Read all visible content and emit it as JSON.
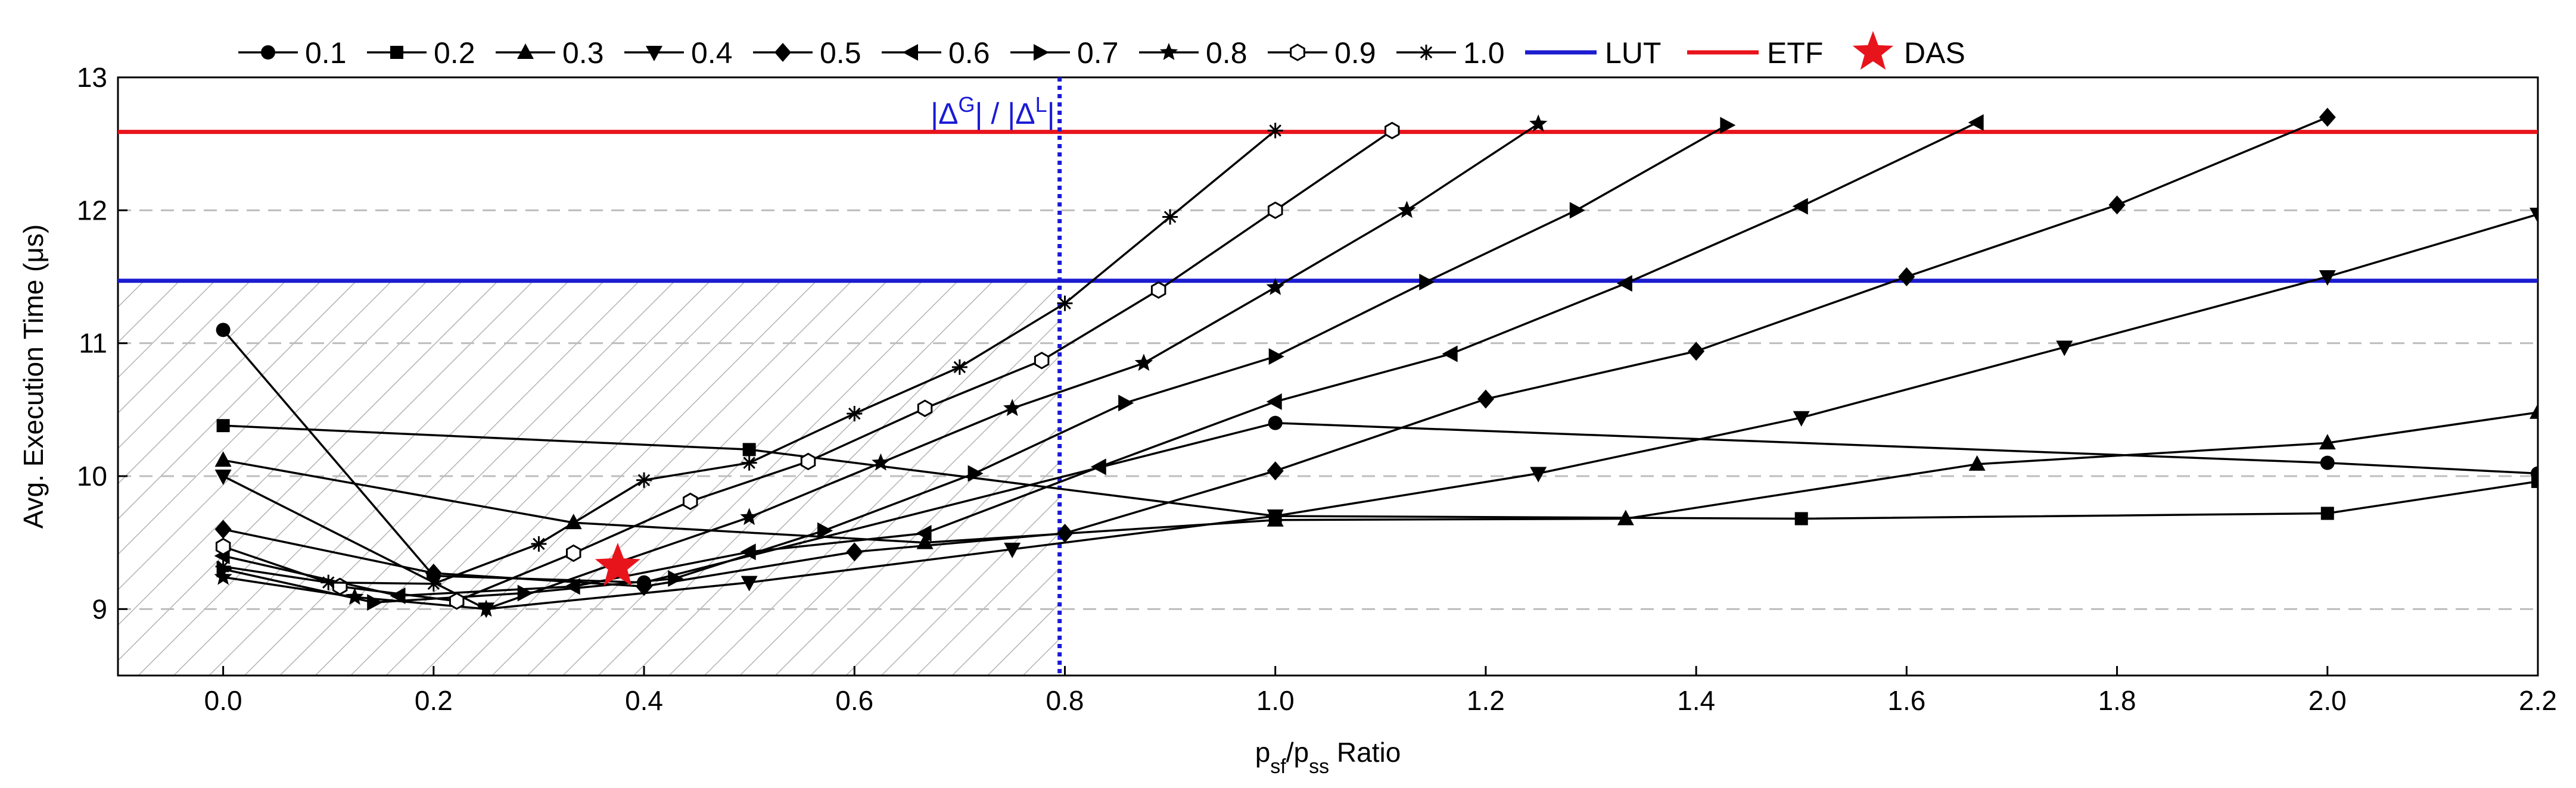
{
  "chart_data": {
    "type": "line",
    "xlabel": "p_sf/p_ss Ratio",
    "xlabel_parts": {
      "p1": "p",
      "s1": "sf",
      "sep": "/p",
      "s2": "ss",
      "rest": " Ratio"
    },
    "ylabel": "Avg. Execution Time (μs)",
    "xlim": [
      -0.1,
      2.2
    ],
    "ylim": [
      8.5,
      13
    ],
    "xticks": [
      "0.0",
      "0.2",
      "0.4",
      "0.6",
      "0.8",
      "1.0",
      "1.2",
      "1.4",
      "1.6",
      "1.8",
      "2.0",
      "2.2"
    ],
    "yticks": [
      "9",
      "10",
      "11",
      "12",
      "13"
    ],
    "grid": "horizontal dashed",
    "legend_position": "top",
    "annotation": {
      "text": "|Δ^G| / |Δ^L|",
      "parts": {
        "a": "|Δ",
        "b": "G",
        "c": "| / |Δ",
        "d": "L",
        "e": "|"
      },
      "x": 0.795,
      "shaded_region_x": [
        -0.1,
        0.795
      ]
    },
    "series": [
      {
        "name": "0.1",
        "marker": "circle",
        "x": [
          0,
          0.2,
          0.4,
          1.0,
          2.0,
          2.2
        ],
        "y": [
          11.1,
          9.25,
          9.2,
          10.4,
          10.1,
          10.02
        ]
      },
      {
        "name": "0.2",
        "marker": "square",
        "x": [
          0,
          0.5,
          1.0,
          1.5,
          2.0,
          2.2
        ],
        "y": [
          10.38,
          10.2,
          9.7,
          9.68,
          9.72,
          9.96
        ]
      },
      {
        "name": "0.3",
        "marker": "triangle-up",
        "x": [
          0,
          0.333,
          0.667,
          1.0,
          1.333,
          1.667,
          2.0,
          2.2
        ],
        "y": [
          10.12,
          9.65,
          9.5,
          9.67,
          9.68,
          10.09,
          10.25,
          10.48
        ]
      },
      {
        "name": "0.4",
        "marker": "triangle-down",
        "x": [
          0,
          0.25,
          0.5,
          0.75,
          1.0,
          1.25,
          1.5,
          1.75,
          2.0,
          2.2
        ],
        "y": [
          10.0,
          9.0,
          9.2,
          9.45,
          9.7,
          10.02,
          10.44,
          10.97,
          11.5,
          11.97
        ]
      },
      {
        "name": "0.5",
        "marker": "diamond",
        "x": [
          0,
          0.2,
          0.4,
          0.6,
          0.8,
          1.0,
          1.2,
          1.4,
          1.6,
          1.8,
          2.0
        ],
        "y": [
          9.6,
          9.27,
          9.17,
          9.43,
          9.57,
          10.04,
          10.58,
          10.94,
          11.5,
          12.04,
          12.7
        ]
      },
      {
        "name": "0.6",
        "marker": "triangle-left",
        "x": [
          0,
          0.167,
          0.333,
          0.5,
          0.667,
          0.833,
          1.0,
          1.167,
          1.333,
          1.5,
          1.667
        ],
        "y": [
          9.4,
          9.1,
          9.17,
          9.43,
          9.57,
          10.07,
          10.56,
          10.92,
          11.45,
          12.03,
          12.66
        ]
      },
      {
        "name": "0.7",
        "marker": "triangle-right",
        "x": [
          0,
          0.143,
          0.286,
          0.429,
          0.571,
          0.714,
          0.857,
          1.0,
          1.143,
          1.286,
          1.429
        ],
        "y": [
          9.3,
          9.05,
          9.12,
          9.23,
          9.59,
          10.02,
          10.55,
          10.9,
          11.46,
          12.0,
          12.64
        ]
      },
      {
        "name": "0.8",
        "marker": "star",
        "x": [
          0,
          0.125,
          0.25,
          0.375,
          0.5,
          0.625,
          0.75,
          0.875,
          1.0,
          1.125,
          1.25
        ],
        "y": [
          9.24,
          9.09,
          9.0,
          9.35,
          9.69,
          10.1,
          10.51,
          10.85,
          11.42,
          12.0,
          12.65
        ]
      },
      {
        "name": "0.9",
        "marker": "hexagon-open",
        "x": [
          0,
          0.111,
          0.222,
          0.333,
          0.444,
          0.556,
          0.667,
          0.778,
          0.889,
          1.0,
          1.111
        ],
        "y": [
          9.47,
          9.17,
          9.06,
          9.42,
          9.81,
          10.11,
          10.51,
          10.87,
          11.4,
          12.0,
          12.6
        ]
      },
      {
        "name": "1.0",
        "marker": "asterisk",
        "x": [
          0,
          0.1,
          0.2,
          0.3,
          0.4,
          0.5,
          0.6,
          0.7,
          0.8,
          0.9,
          1.0
        ],
        "y": [
          9.32,
          9.2,
          9.19,
          9.49,
          9.97,
          10.1,
          10.47,
          10.82,
          11.3,
          11.95,
          12.6
        ]
      }
    ],
    "reference_lines": [
      {
        "name": "LUT",
        "y": 11.47,
        "color": "#1c1cd0"
      },
      {
        "name": "ETF",
        "y": 12.59,
        "color": "#e8141c"
      }
    ],
    "highlight_point": {
      "name": "DAS",
      "x": 0.375,
      "y": 9.32,
      "color": "#e8141c",
      "marker": "star"
    },
    "colors": {
      "series": "#000000",
      "vline": "#1a1ad6",
      "grid": "#bdbdbd",
      "hatch": "#b0b0b0"
    }
  }
}
